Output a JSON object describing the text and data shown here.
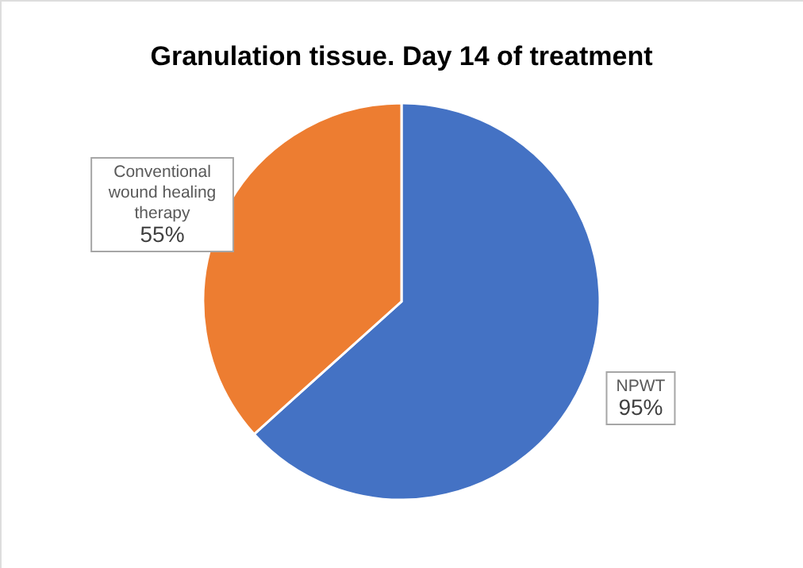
{
  "chart_data": {
    "type": "pie",
    "title": "Granulation tissue. Day 14 of treatment",
    "categories": [
      "NPWT",
      "Conventional wound healing therapy"
    ],
    "values": [
      95,
      55
    ],
    "colors": [
      "#4472c4",
      "#ed7d31"
    ],
    "value_labels": [
      "95%",
      "55%"
    ]
  }
}
